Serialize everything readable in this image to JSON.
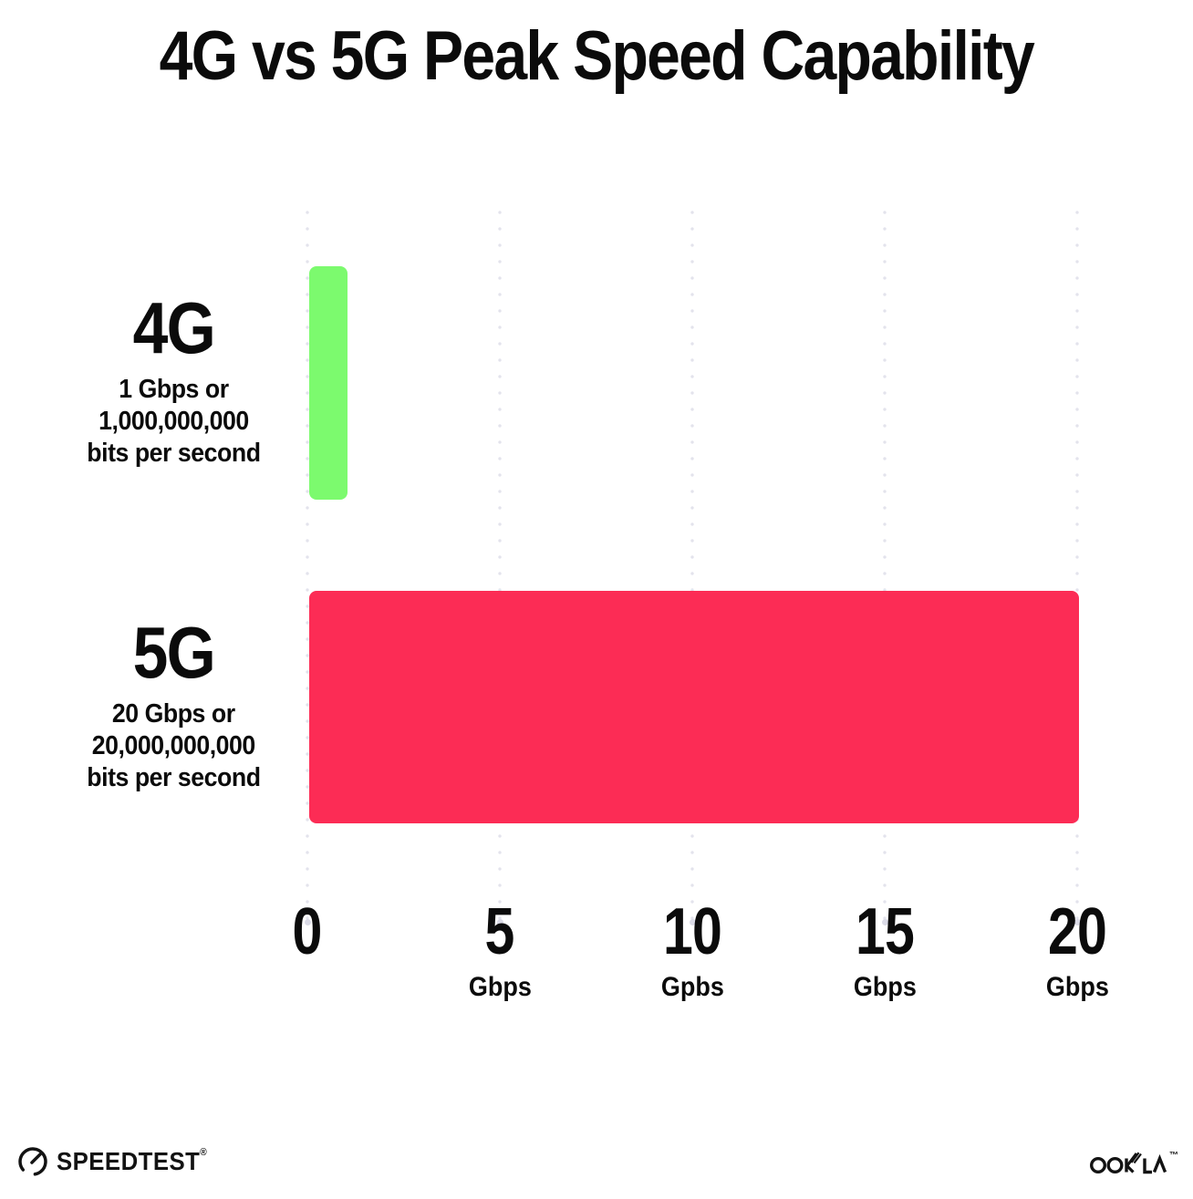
{
  "title": "4G vs 5G Peak Speed Capability",
  "chart_data": {
    "type": "bar",
    "orientation": "horizontal",
    "title": "4G vs 5G Peak Speed Capability",
    "categories": [
      "4G",
      "5G"
    ],
    "values": [
      1,
      20
    ],
    "unit": "Gbps",
    "xlim": [
      0,
      20
    ],
    "xlabel": "",
    "ylabel": "",
    "grid": "vertical dotted gridlines at 0, 5, 10, 15, 20",
    "legend": "none",
    "background": "#FFFFFF",
    "bars": [
      {
        "label": "4G",
        "value": 1,
        "color": "#7CFA6E",
        "desc_lines": [
          "1 Gbps or",
          "1,000,000,000",
          "bits per second"
        ]
      },
      {
        "label": "5G",
        "value": 20,
        "color": "#FC2C55",
        "desc_lines": [
          "20 Gbps or",
          "20,000,000,000",
          "bits per second"
        ]
      }
    ],
    "xticks": [
      {
        "number": "0",
        "unit": ""
      },
      {
        "number": "5",
        "unit": "Gbps"
      },
      {
        "number": "10",
        "unit": "Gpbs"
      },
      {
        "number": "15",
        "unit": "Gbps"
      },
      {
        "number": "20",
        "unit": "Gbps"
      }
    ]
  },
  "footer": {
    "speedtest_label": "SPEEDTEST",
    "speedtest_mark": "®",
    "ookla_label": "OOKLA",
    "ookla_mark": "™",
    "logo_color": "#131313"
  }
}
